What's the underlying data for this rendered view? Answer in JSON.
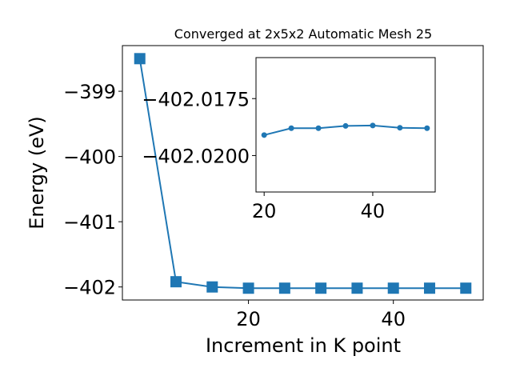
{
  "chart_data": [
    {
      "type": "line",
      "title": "Converged at 2x5x2 Automatic Mesh 25",
      "xlabel": "Increment in K point",
      "ylabel": "Energy (eV)",
      "xlim": [
        2.6,
        52.4
      ],
      "ylim": [
        -402.2,
        -398.3
      ],
      "xticks": [
        20,
        40
      ],
      "yticks": [
        -402,
        -401,
        -400,
        -399
      ],
      "xtick_labels": [
        "20",
        "40"
      ],
      "ytick_labels": [
        "−402",
        "−401",
        "−400",
        "−399"
      ],
      "marker": "square",
      "color": "#1f77b4",
      "grid": false,
      "series": [
        {
          "x": [
            5,
            10,
            15,
            20,
            25,
            30,
            35,
            40,
            45,
            50
          ],
          "y": [
            -398.5,
            -401.92,
            -402.0,
            -402.019,
            -402.0188,
            -402.0188,
            -402.0187,
            -402.0187,
            -402.0188,
            -402.0188
          ]
        }
      ]
    },
    {
      "type": "line",
      "inset": true,
      "xlim": [
        18.5,
        51.5
      ],
      "ylim": [
        -402.0216,
        -402.0157
      ],
      "xticks": [
        20,
        40
      ],
      "yticks": [
        -402.02,
        -402.0175
      ],
      "xtick_labels": [
        "20",
        "40"
      ],
      "ytick_labels": [
        "−402.0200",
        "−402.0175"
      ],
      "marker": "circle",
      "color": "#1f77b4",
      "grid": false,
      "series": [
        {
          "x": [
            20,
            25,
            30,
            35,
            40,
            45,
            50
          ],
          "y": [
            -402.0191,
            -402.0188,
            -402.0188,
            -402.0187,
            -402.01868,
            -402.01878,
            -402.0188
          ]
        }
      ]
    }
  ]
}
